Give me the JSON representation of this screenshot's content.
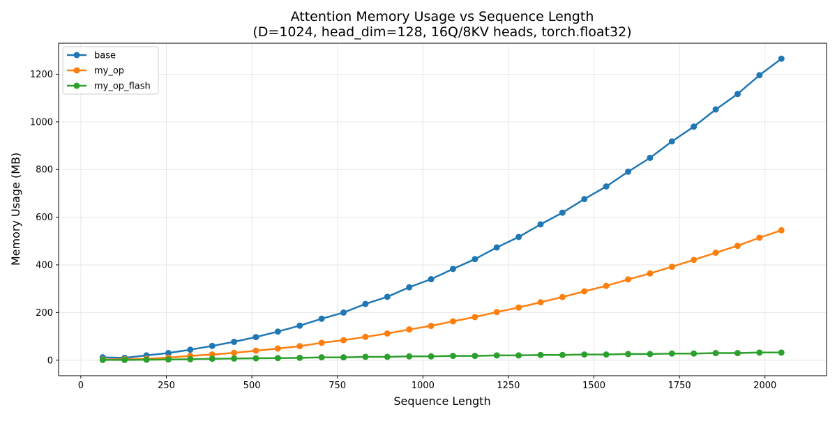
{
  "chart_data": {
    "type": "line",
    "title": "Attention Memory Usage vs Sequence Length",
    "subtitle": "(D=1024, head_dim=128, 16Q/8KV heads, torch.float32)",
    "xlabel": "Sequence Length",
    "ylabel": "Memory Usage (MB)",
    "xlim": [
      -65,
      2180
    ],
    "ylim": [
      -65,
      1330
    ],
    "xticks": [
      0,
      250,
      500,
      750,
      1000,
      1250,
      1500,
      1750,
      2000
    ],
    "yticks": [
      0,
      200,
      400,
      600,
      800,
      1000,
      1200
    ],
    "grid": true,
    "legend_position": "top-left",
    "x": [
      64,
      128,
      192,
      256,
      320,
      384,
      448,
      512,
      576,
      640,
      704,
      768,
      832,
      896,
      960,
      1024,
      1088,
      1152,
      1216,
      1280,
      1344,
      1408,
      1472,
      1536,
      1600,
      1664,
      1728,
      1792,
      1856,
      1920,
      1984,
      2048
    ],
    "series": [
      {
        "name": "base",
        "color": "#1f77b4",
        "values": [
          12,
          10,
          20,
          30,
          44,
          60,
          77,
          97,
          120,
          145,
          174,
          200,
          236,
          266,
          306,
          340,
          383,
          424,
          473,
          517,
          570,
          619,
          676,
          729,
          791,
          849,
          918,
          980,
          1052,
          1117,
          1196,
          1265
        ]
      },
      {
        "name": "my_op",
        "color": "#ff7f0e",
        "values": [
          3,
          4,
          6,
          11,
          18,
          24,
          31,
          40,
          49,
          59,
          73,
          84,
          98,
          112,
          129,
          144,
          163,
          181,
          202,
          221,
          243,
          265,
          289,
          312,
          339,
          364,
          392,
          421,
          451,
          480,
          514,
          545
        ]
      },
      {
        "name": "my_op_flash",
        "color": "#2ca02c",
        "values": [
          1,
          1,
          2,
          3,
          4,
          6,
          7,
          8,
          9,
          10,
          12,
          12,
          14,
          14,
          16,
          16,
          18,
          18,
          20,
          20,
          22,
          22,
          24,
          24,
          26,
          26,
          28,
          28,
          30,
          30,
          32,
          32
        ]
      }
    ]
  }
}
